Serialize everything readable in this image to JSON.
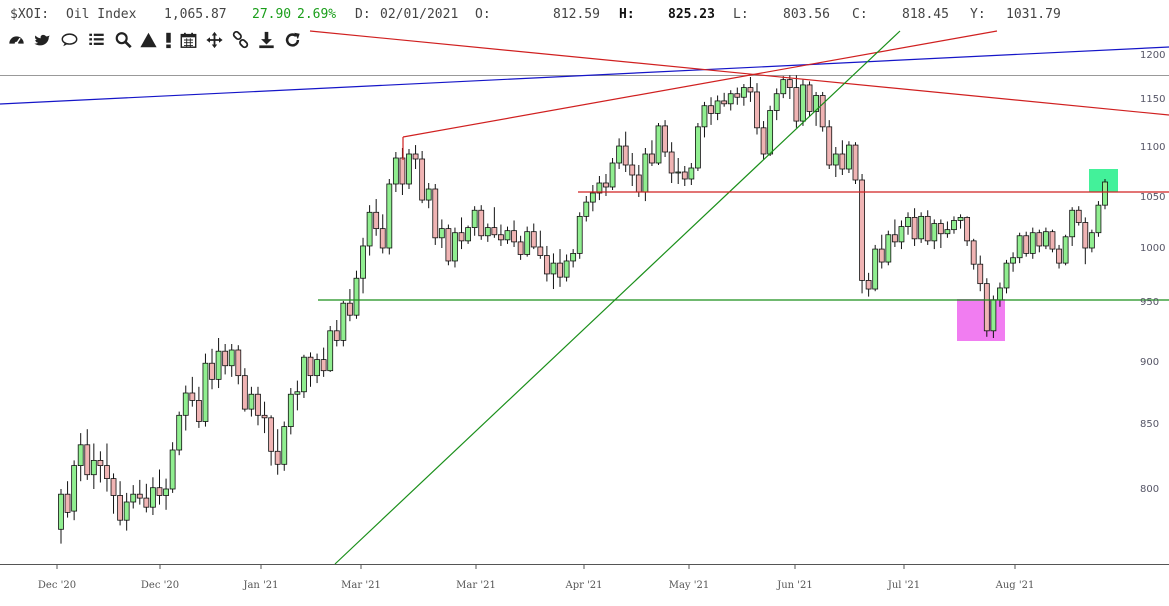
{
  "header": {
    "symbol": "$XOI:",
    "name": "Oil Index",
    "last": "1,065.87",
    "change": "27.90",
    "change_pct": "2.69%",
    "date_label": "D:",
    "date": "02/01/2021",
    "open_label": "O:",
    "open": "812.59",
    "high_label": "H:",
    "high": "825.23",
    "low_label": "L:",
    "low": "803.56",
    "close_label": "C:",
    "close": "818.45",
    "year_label": "Y:",
    "year": "1031.79",
    "change_color": "#1a9e1a"
  },
  "toolbar": [
    {
      "name": "dashboard-icon"
    },
    {
      "name": "twitter-icon"
    },
    {
      "name": "comment-icon"
    },
    {
      "name": "list-icon"
    },
    {
      "name": "search-icon"
    },
    {
      "name": "triangle-icon"
    },
    {
      "name": "exclamation-icon"
    },
    {
      "name": "calendar-icon"
    },
    {
      "name": "move-icon"
    },
    {
      "name": "link-icon"
    },
    {
      "name": "download-icon"
    },
    {
      "name": "refresh-icon"
    }
  ],
  "chart_data": {
    "type": "candlestick",
    "symbol": "$XOI",
    "ylim": [
      760,
      1215
    ],
    "scale": "log",
    "y_ticks": [
      800,
      850,
      900,
      950,
      1000,
      1050,
      1100,
      1150,
      1200
    ],
    "x_tick_labels": [
      "Dec '20",
      "Dec '20",
      "Jan '21",
      "Mar '21",
      "Mar '21",
      "Apr '21",
      "May '21",
      "Jun '21",
      "Jul '21",
      "Aug '21"
    ],
    "up_color": "#90ee90",
    "down_color": "#f0b4b4",
    "candles": [
      [
        769,
        800,
        758,
        796
      ],
      [
        796,
        806,
        778,
        782
      ],
      [
        783,
        822,
        776,
        818
      ],
      [
        818,
        843,
        806,
        834
      ],
      [
        834,
        846,
        807,
        811
      ],
      [
        811,
        835,
        800,
        822
      ],
      [
        822,
        829,
        805,
        818
      ],
      [
        818,
        835,
        798,
        808
      ],
      [
        808,
        812,
        781,
        795
      ],
      [
        795,
        806,
        772,
        776
      ],
      [
        776,
        797,
        768,
        790
      ],
      [
        790,
        803,
        785,
        796
      ],
      [
        796,
        807,
        788,
        793
      ],
      [
        793,
        804,
        782,
        786
      ],
      [
        786,
        809,
        780,
        801
      ],
      [
        801,
        815,
        788,
        795
      ],
      [
        795,
        808,
        784,
        800
      ],
      [
        800,
        836,
        797,
        830
      ],
      [
        830,
        860,
        826,
        857
      ],
      [
        857,
        881,
        845,
        875
      ],
      [
        875,
        888,
        864,
        869
      ],
      [
        869,
        880,
        847,
        852
      ],
      [
        852,
        907,
        848,
        899
      ],
      [
        899,
        911,
        878,
        886
      ],
      [
        886,
        920,
        879,
        909
      ],
      [
        909,
        915,
        890,
        897
      ],
      [
        897,
        915,
        888,
        910
      ],
      [
        910,
        914,
        882,
        889
      ],
      [
        889,
        895,
        860,
        862
      ],
      [
        862,
        880,
        856,
        874
      ],
      [
        874,
        880,
        849,
        857
      ],
      [
        857,
        868,
        843,
        855
      ],
      [
        855,
        857,
        818,
        829
      ],
      [
        829,
        846,
        811,
        819
      ],
      [
        819,
        852,
        814,
        848
      ],
      [
        848,
        879,
        842,
        874
      ],
      [
        874,
        885,
        861,
        876
      ],
      [
        876,
        906,
        871,
        904
      ],
      [
        904,
        908,
        880,
        889
      ],
      [
        889,
        907,
        883,
        902
      ],
      [
        902,
        912,
        888,
        893
      ],
      [
        893,
        930,
        892,
        926
      ],
      [
        926,
        935,
        913,
        918
      ],
      [
        918,
        951,
        913,
        949
      ],
      [
        949,
        962,
        934,
        939
      ],
      [
        939,
        979,
        936,
        972
      ],
      [
        972,
        1010,
        958,
        1002
      ],
      [
        1002,
        1042,
        993,
        1035
      ],
      [
        1035,
        1048,
        1012,
        1019
      ],
      [
        1019,
        1033,
        995,
        1000
      ],
      [
        1000,
        1068,
        994,
        1063
      ],
      [
        1063,
        1095,
        1055,
        1089
      ],
      [
        1089,
        1099,
        1052,
        1063
      ],
      [
        1063,
        1098,
        1058,
        1093
      ],
      [
        1093,
        1102,
        1078,
        1088
      ],
      [
        1088,
        1096,
        1044,
        1047
      ],
      [
        1047,
        1064,
        1039,
        1058
      ],
      [
        1058,
        1063,
        1003,
        1010
      ],
      [
        1010,
        1028,
        1000,
        1019
      ],
      [
        1019,
        1023,
        984,
        988
      ],
      [
        988,
        1020,
        982,
        1015
      ],
      [
        1015,
        1030,
        999,
        1007
      ],
      [
        1007,
        1022,
        1004,
        1020
      ],
      [
        1020,
        1041,
        1012,
        1037
      ],
      [
        1037,
        1042,
        1008,
        1012
      ],
      [
        1012,
        1024,
        1006,
        1020
      ],
      [
        1020,
        1040,
        1010,
        1013
      ],
      [
        1013,
        1023,
        1002,
        1008
      ],
      [
        1008,
        1021,
        1004,
        1017
      ],
      [
        1017,
        1027,
        1001,
        1006
      ],
      [
        1006,
        1012,
        989,
        994
      ],
      [
        994,
        1021,
        992,
        1016
      ],
      [
        1016,
        1024,
        999,
        1001
      ],
      [
        1001,
        1017,
        990,
        993
      ],
      [
        993,
        1002,
        969,
        976
      ],
      [
        976,
        995,
        962,
        986
      ],
      [
        986,
        999,
        964,
        973
      ],
      [
        973,
        994,
        969,
        988
      ],
      [
        988,
        999,
        982,
        995
      ],
      [
        995,
        1035,
        990,
        1031
      ],
      [
        1031,
        1051,
        1026,
        1045
      ],
      [
        1045,
        1062,
        1036,
        1054
      ],
      [
        1054,
        1071,
        1047,
        1064
      ],
      [
        1064,
        1073,
        1051,
        1060
      ],
      [
        1060,
        1089,
        1057,
        1084
      ],
      [
        1084,
        1109,
        1078,
        1101
      ],
      [
        1101,
        1116,
        1075,
        1082
      ],
      [
        1082,
        1094,
        1061,
        1072
      ],
      [
        1072,
        1082,
        1050,
        1055
      ],
      [
        1055,
        1099,
        1046,
        1093
      ],
      [
        1093,
        1107,
        1081,
        1084
      ],
      [
        1084,
        1125,
        1082,
        1122
      ],
      [
        1122,
        1128,
        1090,
        1095
      ],
      [
        1095,
        1105,
        1064,
        1074
      ],
      [
        1074,
        1089,
        1063,
        1075
      ],
      [
        1075,
        1081,
        1061,
        1068
      ],
      [
        1068,
        1084,
        1062,
        1079
      ],
      [
        1079,
        1125,
        1076,
        1121
      ],
      [
        1121,
        1147,
        1110,
        1143
      ],
      [
        1143,
        1152,
        1123,
        1135
      ],
      [
        1135,
        1154,
        1128,
        1148
      ],
      [
        1148,
        1157,
        1142,
        1145
      ],
      [
        1145,
        1160,
        1138,
        1156
      ],
      [
        1156,
        1163,
        1144,
        1152
      ],
      [
        1152,
        1167,
        1143,
        1163
      ],
      [
        1163,
        1175,
        1147,
        1158
      ],
      [
        1158,
        1168,
        1113,
        1120
      ],
      [
        1120,
        1127,
        1087,
        1093
      ],
      [
        1093,
        1143,
        1091,
        1138
      ],
      [
        1138,
        1162,
        1128,
        1156
      ],
      [
        1156,
        1176,
        1151,
        1172
      ],
      [
        1172,
        1177,
        1150,
        1163
      ],
      [
        1163,
        1177,
        1120,
        1127
      ],
      [
        1127,
        1172,
        1122,
        1166
      ],
      [
        1166,
        1170,
        1132,
        1137
      ],
      [
        1137,
        1158,
        1122,
        1154
      ],
      [
        1154,
        1158,
        1116,
        1121
      ],
      [
        1121,
        1128,
        1078,
        1082
      ],
      [
        1082,
        1100,
        1070,
        1093
      ],
      [
        1093,
        1107,
        1072,
        1078
      ],
      [
        1078,
        1106,
        1074,
        1102
      ],
      [
        1102,
        1105,
        1063,
        1067
      ],
      [
        1067,
        1073,
        958,
        970
      ],
      [
        970,
        977,
        955,
        962
      ],
      [
        962,
        1003,
        960,
        999
      ],
      [
        999,
        1013,
        981,
        987
      ],
      [
        987,
        1017,
        984,
        1013
      ],
      [
        1013,
        1028,
        1001,
        1006
      ],
      [
        1006,
        1027,
        999,
        1021
      ],
      [
        1021,
        1035,
        1013,
        1030
      ],
      [
        1030,
        1039,
        1002,
        1009
      ],
      [
        1009,
        1035,
        1005,
        1031
      ],
      [
        1031,
        1037,
        1003,
        1007
      ],
      [
        1007,
        1028,
        999,
        1024
      ],
      [
        1024,
        1028,
        1000,
        1014
      ],
      [
        1014,
        1026,
        1010,
        1018
      ],
      [
        1018,
        1031,
        1014,
        1027
      ],
      [
        1027,
        1033,
        1019,
        1030
      ],
      [
        1030,
        1031,
        1002,
        1007
      ],
      [
        1007,
        1009,
        980,
        985
      ],
      [
        985,
        993,
        960,
        967
      ],
      [
        967,
        972,
        921,
        926
      ],
      [
        926,
        956,
        920,
        952
      ],
      [
        952,
        968,
        946,
        963
      ],
      [
        963,
        989,
        958,
        986
      ],
      [
        986,
        996,
        978,
        991
      ],
      [
        991,
        1015,
        986,
        1012
      ],
      [
        1012,
        1016,
        992,
        995
      ],
      [
        995,
        1020,
        990,
        1015
      ],
      [
        1015,
        1018,
        996,
        1002
      ],
      [
        1002,
        1020,
        999,
        1016
      ],
      [
        1016,
        1018,
        996,
        999
      ],
      [
        999,
        1003,
        981,
        986
      ],
      [
        986,
        1013,
        984,
        1011
      ],
      [
        1011,
        1040,
        1002,
        1037
      ],
      [
        1037,
        1041,
        1022,
        1025
      ],
      [
        1025,
        1030,
        985,
        1000
      ],
      [
        1000,
        1018,
        996,
        1015
      ],
      [
        1015,
        1046,
        1011,
        1042
      ],
      [
        1042,
        1068,
        1038,
        1065
      ]
    ],
    "trendlines": [
      {
        "color": "#1515c8"
      },
      {
        "color": "#d02020"
      },
      {
        "color": "#d02020"
      },
      {
        "color": "#d02020"
      },
      {
        "color": "#1a8f1a"
      },
      {
        "color": "#1a8f1a"
      }
    ],
    "highlight_boxes": [
      {
        "color": "#ee66ee"
      },
      {
        "color": "#22ee88"
      }
    ]
  }
}
